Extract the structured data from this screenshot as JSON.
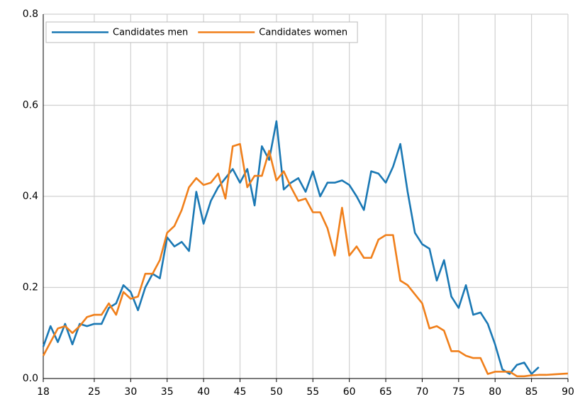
{
  "chart_data": {
    "type": "line",
    "x": [
      18,
      19,
      20,
      21,
      22,
      23,
      24,
      25,
      26,
      27,
      28,
      29,
      30,
      31,
      32,
      33,
      34,
      35,
      36,
      37,
      38,
      39,
      40,
      41,
      42,
      43,
      44,
      45,
      46,
      47,
      48,
      49,
      50,
      51,
      52,
      53,
      54,
      55,
      56,
      57,
      58,
      59,
      60,
      61,
      62,
      63,
      64,
      65,
      66,
      67,
      68,
      69,
      70,
      71,
      72,
      73,
      74,
      75,
      76,
      77,
      78,
      79,
      80,
      81,
      82,
      83,
      84,
      85,
      86,
      87,
      88,
      89,
      90
    ],
    "series": [
      {
        "name": "Candidates men",
        "color": "#1a78b4",
        "values": [
          0.07,
          0.115,
          0.08,
          0.12,
          0.075,
          0.12,
          0.115,
          0.12,
          0.12,
          0.155,
          0.165,
          0.205,
          0.19,
          0.15,
          0.2,
          0.23,
          0.22,
          0.31,
          0.29,
          0.3,
          0.28,
          0.41,
          0.34,
          0.39,
          0.42,
          0.44,
          0.46,
          0.43,
          0.46,
          0.38,
          0.51,
          0.48,
          0.565,
          0.415,
          0.43,
          0.44,
          0.41,
          0.455,
          0.4,
          0.43,
          0.43,
          0.435,
          0.425,
          0.4,
          0.37,
          0.455,
          0.45,
          0.43,
          0.465,
          0.515,
          0.41,
          0.32,
          0.295,
          0.285,
          0.215,
          0.26,
          0.18,
          0.155,
          0.205,
          0.14,
          0.145,
          0.12,
          0.075,
          0.02,
          0.01,
          0.03,
          0.035,
          0.01,
          0.025,
          null,
          null,
          null,
          null
        ]
      },
      {
        "name": "Candidates women",
        "color": "#f07f1a",
        "values": [
          0.05,
          0.08,
          0.11,
          0.115,
          0.1,
          0.115,
          0.135,
          0.14,
          0.14,
          0.165,
          0.14,
          0.19,
          0.175,
          0.18,
          0.23,
          0.23,
          0.26,
          0.32,
          0.335,
          0.37,
          0.42,
          0.44,
          0.425,
          0.43,
          0.45,
          0.395,
          0.51,
          0.515,
          0.42,
          0.445,
          0.445,
          0.5,
          0.435,
          0.455,
          0.42,
          0.39,
          0.395,
          0.365,
          0.365,
          0.33,
          0.27,
          0.375,
          0.27,
          0.29,
          0.265,
          0.265,
          0.305,
          0.315,
          0.315,
          0.215,
          0.205,
          0.185,
          0.165,
          0.11,
          0.115,
          0.105,
          0.06,
          0.06,
          0.05,
          0.045,
          0.045,
          0.01,
          0.015,
          0.015,
          0.015,
          0.005,
          0.005,
          0.007,
          0.008,
          0.008,
          0.009,
          0.01,
          0.011
        ]
      }
    ],
    "xlim": [
      18,
      90
    ],
    "xticks": [
      18,
      25,
      30,
      35,
      40,
      45,
      50,
      55,
      60,
      65,
      70,
      75,
      80,
      85,
      90
    ],
    "ylim": [
      0,
      0.8
    ],
    "yticks": [
      {
        "value": 0,
        "label": "0.0"
      },
      0.2,
      0.4,
      0.6,
      0.8
    ],
    "grid": true,
    "legend": "upper left"
  }
}
